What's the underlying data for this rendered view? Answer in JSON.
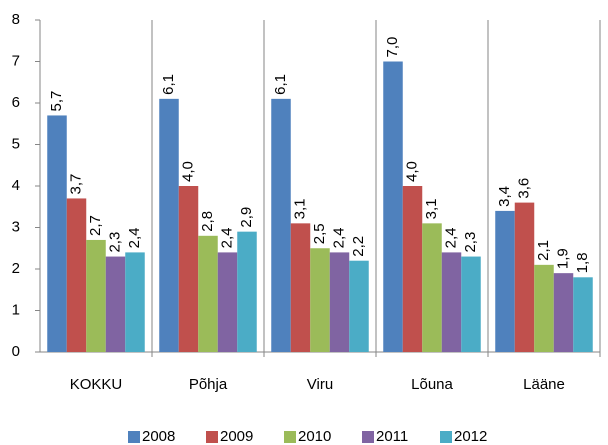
{
  "chart_data": {
    "type": "bar",
    "categories": [
      "KOKKU",
      "Põhja",
      "Viru",
      "Lõuna",
      "Lääne"
    ],
    "series": [
      {
        "name": "2008",
        "color": "#4f81bd",
        "values": [
          5.7,
          6.1,
          6.1,
          7.0,
          3.4
        ],
        "value_labels": [
          "5,7",
          "6,1",
          "6,1",
          "7,0",
          "3,4"
        ]
      },
      {
        "name": "2009",
        "color": "#c0504d",
        "values": [
          3.7,
          4.0,
          3.1,
          4.0,
          3.6
        ],
        "value_labels": [
          "3,7",
          "4,0",
          "3,1",
          "4,0",
          "3,6"
        ]
      },
      {
        "name": "2010",
        "color": "#9bbb59",
        "values": [
          2.7,
          2.8,
          2.5,
          3.1,
          2.1
        ],
        "value_labels": [
          "2,7",
          "2,8",
          "2,5",
          "3,1",
          "2,1"
        ]
      },
      {
        "name": "2011",
        "color": "#8064a2",
        "values": [
          2.3,
          2.4,
          2.4,
          2.4,
          1.9
        ],
        "value_labels": [
          "2,3",
          "2,4",
          "2,4",
          "2,4",
          "1,9"
        ]
      },
      {
        "name": "2012",
        "color": "#4bacc6",
        "values": [
          2.4,
          2.9,
          2.2,
          2.3,
          1.8
        ],
        "value_labels": [
          "2,4",
          "2,9",
          "2,2",
          "2,3",
          "1,8"
        ]
      }
    ],
    "ylim": [
      0,
      8
    ],
    "yticks": [
      0,
      1,
      2,
      3,
      4,
      5,
      6,
      7,
      8
    ],
    "grid": false,
    "legend": "bottom"
  }
}
